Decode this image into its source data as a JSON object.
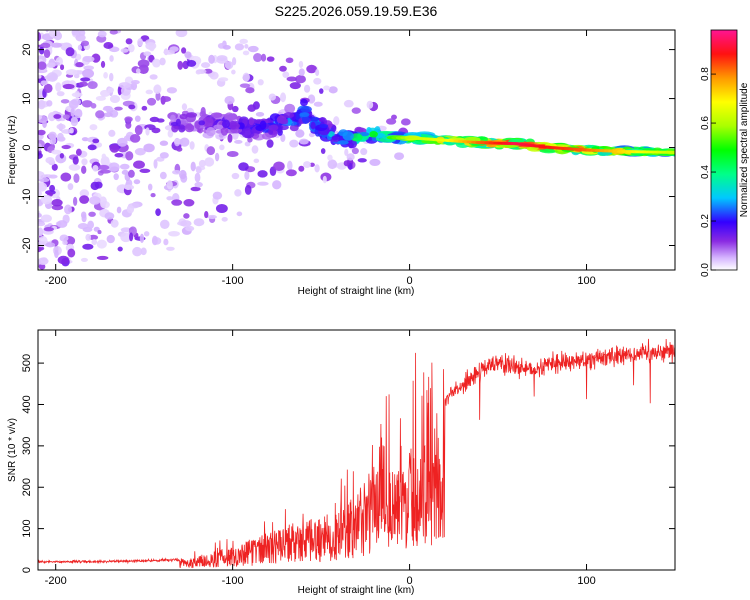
{
  "title": "S225.2026.059.19.59.E36",
  "chart_data": [
    {
      "type": "heatmap",
      "title": "S225.2026.059.19.59.E36",
      "xlabel": "Height of straight line (km)",
      "ylabel": "Frequency (Hz)",
      "xlim": [
        -210,
        150
      ],
      "ylim": [
        -25,
        24
      ],
      "xticks": [
        -200,
        -100,
        0,
        100
      ],
      "yticks": [
        -20,
        -10,
        0,
        10,
        20
      ],
      "colorbar": {
        "label": "Normalized spectral amplitude",
        "range": [
          0,
          0.98
        ],
        "ticks": [
          0.0,
          0.2,
          0.4,
          0.6,
          0.8
        ]
      },
      "ridge": {
        "x": [
          -130,
          -110,
          -90,
          -70,
          -60,
          -50,
          -40,
          -30,
          -20,
          -10,
          0,
          20,
          40,
          60,
          80,
          100,
          120,
          150
        ],
        "freq": [
          5,
          5,
          4,
          5,
          7,
          4,
          2,
          2,
          2.5,
          2,
          2,
          1.5,
          1,
          0.8,
          0,
          -0.5,
          -0.8,
          -1
        ],
        "amplitude": [
          0.15,
          0.15,
          0.2,
          0.25,
          0.3,
          0.3,
          0.3,
          0.4,
          0.5,
          0.5,
          0.6,
          0.65,
          0.8,
          0.9,
          0.85,
          0.8,
          0.7,
          0.6
        ]
      }
    },
    {
      "type": "line",
      "xlabel": "Height of straight line (km)",
      "ylabel": "SNR (10 * v/v)",
      "xlim": [
        -210,
        150
      ],
      "ylim": [
        0,
        580
      ],
      "xticks": [
        -200,
        -100,
        0,
        100
      ],
      "yticks": [
        0,
        100,
        200,
        300,
        400,
        500
      ],
      "series": [
        {
          "name": "SNR",
          "color": "#ee2222",
          "envelope_x": [
            -210,
            -180,
            -150,
            -130,
            -120,
            -100,
            -80,
            -60,
            -40,
            -30,
            -20,
            -15,
            -10,
            -5,
            0,
            10,
            20,
            30,
            40,
            50,
            60,
            70,
            80,
            90,
            100,
            120,
            150
          ],
          "envelope_y": [
            20,
            20,
            22,
            25,
            30,
            50,
            80,
            100,
            130,
            160,
            230,
            350,
            300,
            300,
            370,
            380,
            410,
            450,
            480,
            500,
            490,
            480,
            500,
            500,
            510,
            520,
            530
          ]
        }
      ]
    }
  ]
}
